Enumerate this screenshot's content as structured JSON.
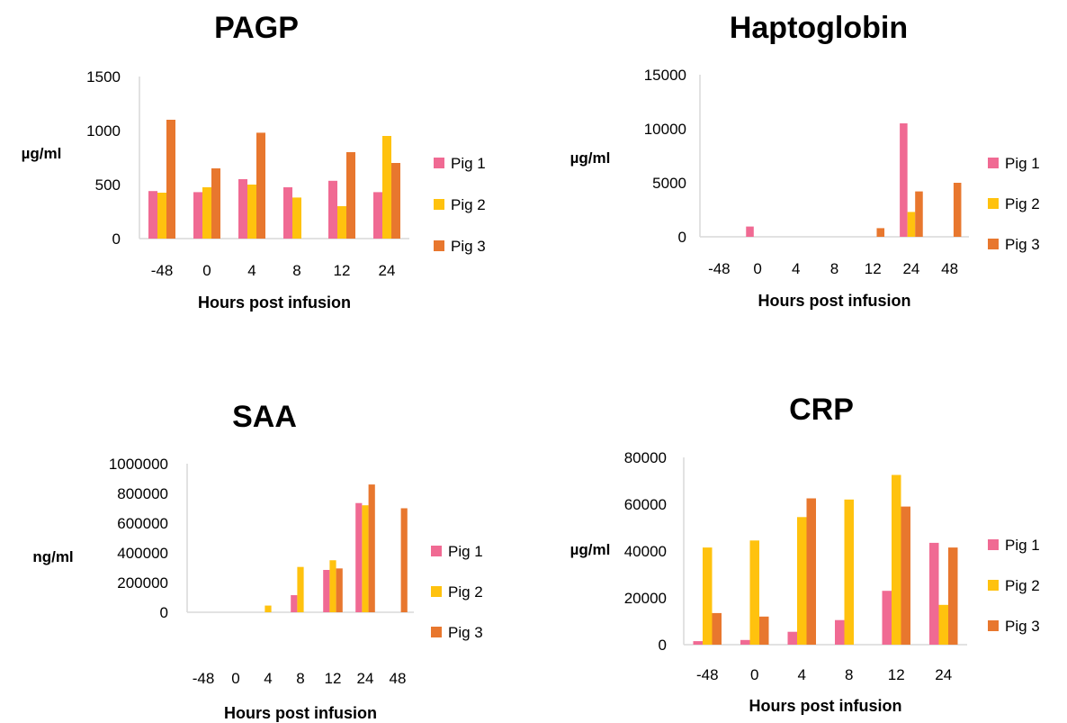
{
  "colors": {
    "Pig 1": "#f06a93",
    "Pig 2": "#ffc20e",
    "Pig 3": "#e8772e"
  },
  "chart_data": [
    {
      "type": "bar",
      "title": "PAGP",
      "ylabel": "µg/ml",
      "xlabel": "Hours post infusion",
      "categories": [
        "-48",
        "0",
        "4",
        "8",
        "12",
        "24"
      ],
      "ylim": [
        0,
        1500
      ],
      "yticks": [
        "0",
        "500",
        "1000",
        "1500"
      ],
      "series": [
        {
          "name": "Pig 1",
          "values": [
            440,
            430,
            550,
            475,
            535,
            430
          ]
        },
        {
          "name": "Pig 2",
          "values": [
            425,
            475,
            500,
            380,
            300,
            950
          ]
        },
        {
          "name": "Pig 3",
          "values": [
            1100,
            650,
            980,
            0,
            800,
            700
          ]
        }
      ],
      "legend": "right"
    },
    {
      "type": "bar",
      "title": "Haptoglobin",
      "ylabel": "µg/ml",
      "xlabel": "Hours post infusion",
      "categories": [
        "-48",
        "0",
        "4",
        "8",
        "12",
        "24",
        "48"
      ],
      "ylim": [
        0,
        15000
      ],
      "yticks": [
        "0",
        "5000",
        "10000",
        "15000"
      ],
      "series": [
        {
          "name": "Pig 1",
          "values": [
            0,
            950,
            0,
            0,
            0,
            10500,
            0
          ]
        },
        {
          "name": "Pig 2",
          "values": [
            0,
            0,
            0,
            0,
            0,
            2300,
            0
          ]
        },
        {
          "name": "Pig 3",
          "values": [
            0,
            0,
            0,
            0,
            800,
            4200,
            5000
          ]
        }
      ],
      "legend": "right"
    },
    {
      "type": "bar",
      "title": "SAA",
      "ylabel": "ng/ml",
      "xlabel": "Hours post infusion",
      "categories": [
        "-48",
        "0",
        "4",
        "8",
        "12",
        "24",
        "48"
      ],
      "ylim": [
        0,
        1000000
      ],
      "yticks": [
        "0",
        "200000",
        "400000",
        "600000",
        "800000",
        "1000000"
      ],
      "series": [
        {
          "name": "Pig 1",
          "values": [
            0,
            0,
            0,
            115000,
            285000,
            735000,
            0
          ]
        },
        {
          "name": "Pig 2",
          "values": [
            0,
            0,
            45000,
            305000,
            350000,
            720000,
            0
          ]
        },
        {
          "name": "Pig 3",
          "values": [
            0,
            0,
            0,
            0,
            295000,
            860000,
            700000
          ]
        }
      ],
      "legend": "right"
    },
    {
      "type": "bar",
      "title": "CRP",
      "ylabel": "µg/ml",
      "xlabel": "Hours post infusion",
      "categories": [
        "-48",
        "0",
        "4",
        "8",
        "12",
        "24"
      ],
      "ylim": [
        0,
        80000
      ],
      "yticks": [
        "0",
        "20000",
        "40000",
        "60000",
        "80000"
      ],
      "series": [
        {
          "name": "Pig 1",
          "values": [
            1500,
            2000,
            5500,
            10500,
            23000,
            43500
          ]
        },
        {
          "name": "Pig 2",
          "values": [
            41500,
            44500,
            54500,
            62000,
            72500,
            17000
          ]
        },
        {
          "name": "Pig 3",
          "values": [
            13500,
            12000,
            62500,
            0,
            59000,
            41500
          ]
        }
      ],
      "legend": "right"
    }
  ]
}
